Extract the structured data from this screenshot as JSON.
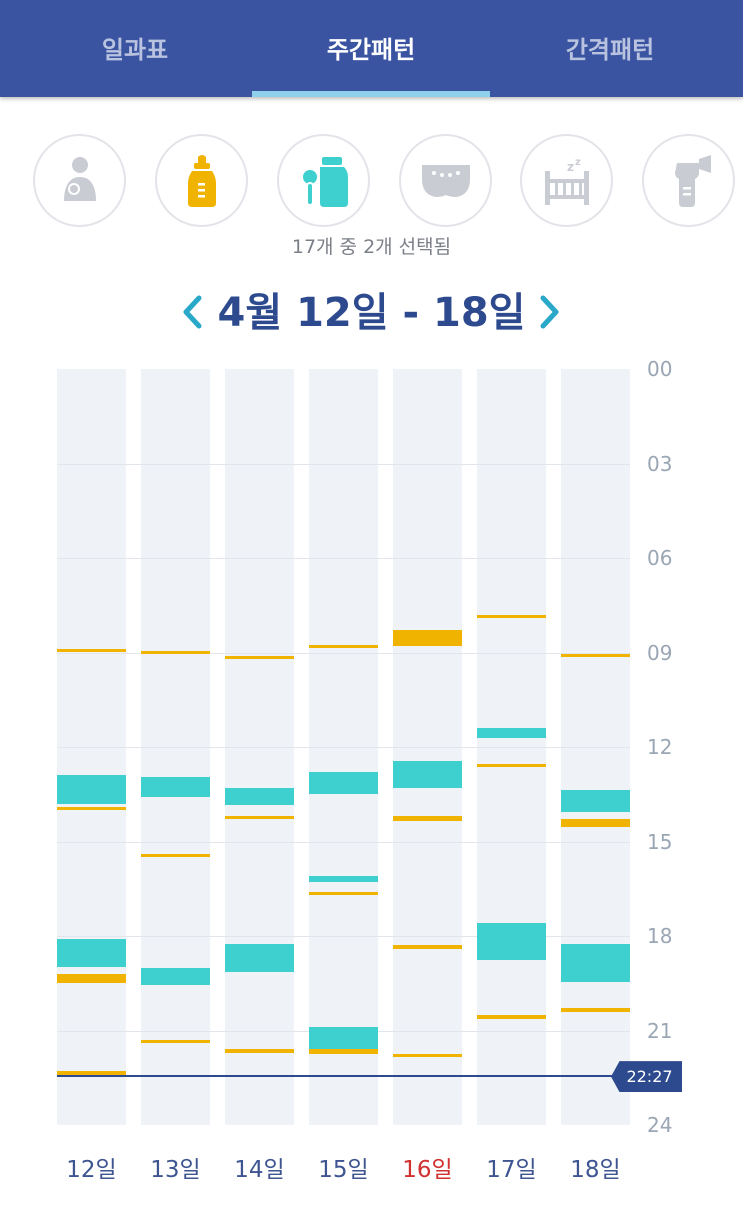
{
  "tabs": [
    {
      "label": "일과표",
      "active": false
    },
    {
      "label": "주간패턴",
      "active": true
    },
    {
      "label": "간격패턴",
      "active": false
    }
  ],
  "categories": [
    {
      "icon": "breastfeeding-icon",
      "selected": false
    },
    {
      "icon": "baby-bottle-icon",
      "selected": true,
      "color": "#f0b400"
    },
    {
      "icon": "baby-food-icon",
      "selected": true,
      "color": "#3ecfcf"
    },
    {
      "icon": "diaper-icon",
      "selected": false
    },
    {
      "icon": "crib-sleep-icon",
      "selected": false
    },
    {
      "icon": "breast-pump-icon",
      "selected": false
    }
  ],
  "selection_text": "17개 중 2개 선택됨",
  "week": {
    "title": "4월 12일 - 18일",
    "prev_icon": "chevron-left-icon",
    "next_icon": "chevron-right-icon"
  },
  "colors": {
    "header": "#3a54a1",
    "bottle": "#f0b400",
    "food": "#3ecfcf",
    "accent_text": "#2e4a8f",
    "today": "#d0302f"
  },
  "now": {
    "label": "22:27",
    "hour": 22.45
  },
  "chart_data": {
    "type": "timeline",
    "y_range_hours": [
      0,
      24
    ],
    "y_ticks": [
      "00",
      "03",
      "06",
      "09",
      "12",
      "15",
      "18",
      "21",
      "24"
    ],
    "days": [
      {
        "label": "12일",
        "today": false
      },
      {
        "label": "13일",
        "today": false
      },
      {
        "label": "14일",
        "today": false
      },
      {
        "label": "15일",
        "today": false
      },
      {
        "label": "16일",
        "today": true
      },
      {
        "label": "17일",
        "today": false
      },
      {
        "label": "18일",
        "today": false
      }
    ],
    "series": [
      {
        "category": "bottle",
        "events": [
          [
            [
              8.9,
              9.0
            ],
            [
              19.2,
              19.5
            ],
            [
              13.9,
              14.0
            ],
            [
              22.3,
              22.4
            ]
          ],
          [
            [
              8.95,
              9.05
            ],
            [
              15.4,
              15.45
            ],
            [
              21.3,
              21.4
            ]
          ],
          [
            [
              9.1,
              9.2
            ],
            [
              14.2,
              14.3
            ],
            [
              21.6,
              21.7
            ]
          ],
          [
            [
              8.75,
              8.85
            ],
            [
              16.6,
              16.7
            ],
            [
              21.6,
              21.75
            ]
          ],
          [
            [
              8.3,
              8.8
            ],
            [
              14.2,
              14.35
            ],
            [
              18.3,
              18.4
            ],
            [
              21.75,
              21.85
            ]
          ],
          [
            [
              7.8,
              7.9
            ],
            [
              12.55,
              12.65
            ],
            [
              20.5,
              20.65
            ]
          ],
          [
            [
              9.05,
              9.15
            ],
            [
              14.3,
              14.55
            ],
            [
              20.3,
              20.4
            ]
          ]
        ]
      },
      {
        "category": "food",
        "events": [
          [
            [
              12.9,
              13.8
            ],
            [
              18.1,
              19.0
            ]
          ],
          [
            [
              12.95,
              13.6
            ],
            [
              19.0,
              19.55
            ]
          ],
          [
            [
              13.3,
              13.85
            ],
            [
              18.25,
              19.15
            ]
          ],
          [
            [
              12.8,
              13.5
            ],
            [
              16.1,
              16.3
            ],
            [
              20.9,
              21.6
            ]
          ],
          [
            [
              12.45,
              13.3
            ]
          ],
          [
            [
              11.4,
              11.7
            ],
            [
              17.6,
              18.75
            ]
          ],
          [
            [
              13.35,
              14.05
            ],
            [
              18.25,
              19.45
            ]
          ]
        ]
      }
    ]
  }
}
